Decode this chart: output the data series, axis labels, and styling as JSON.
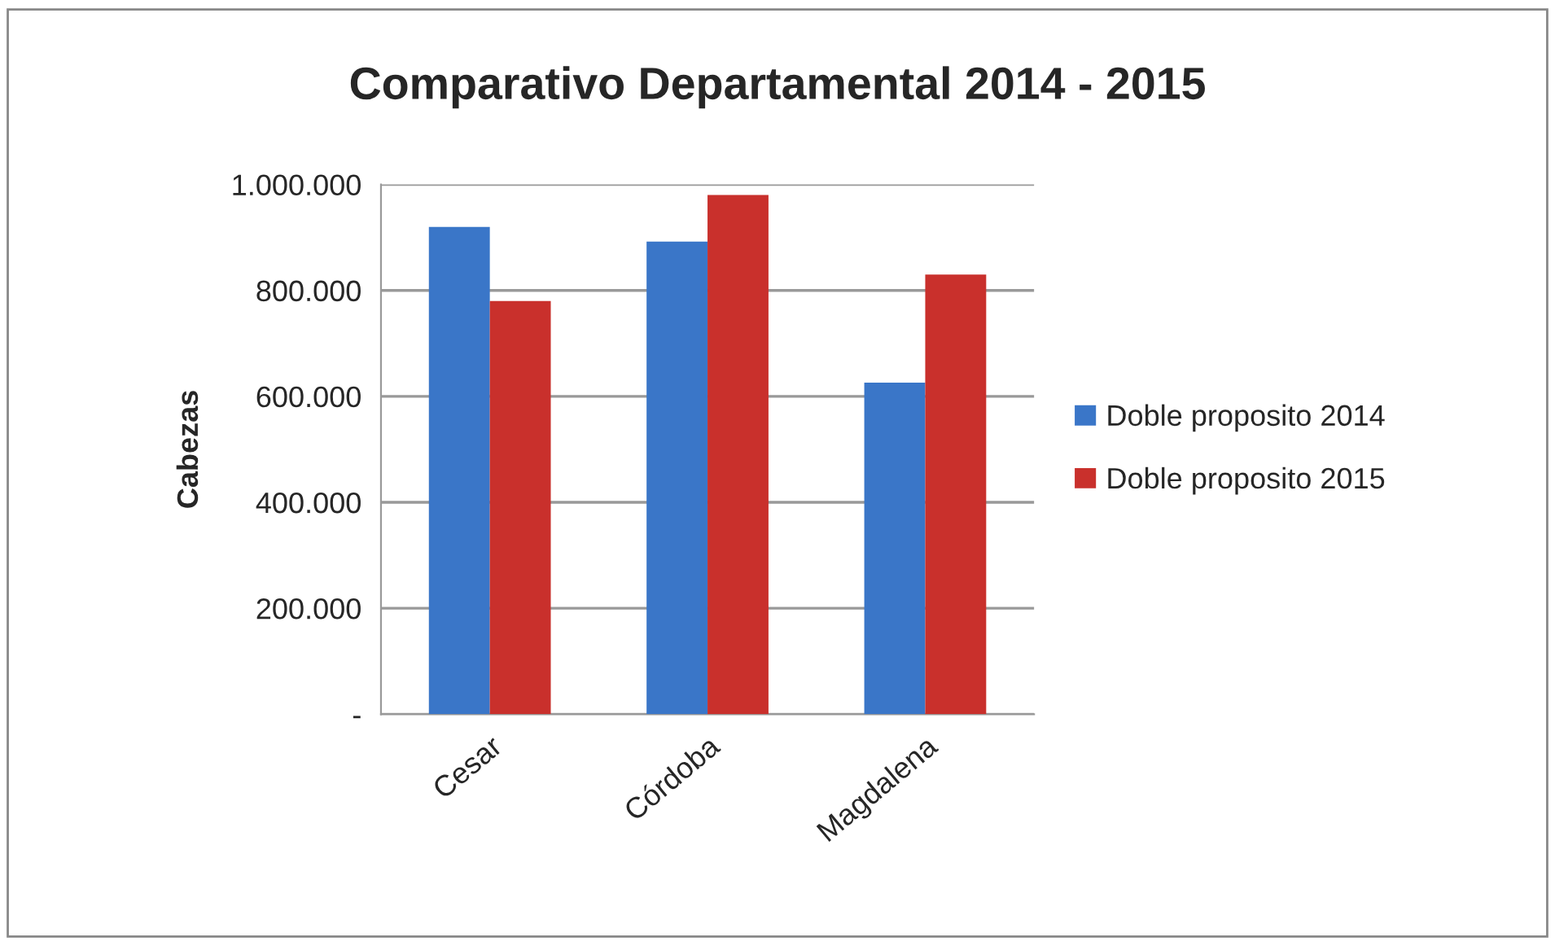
{
  "chart_data": {
    "type": "bar",
    "title": "Comparativo Departamental 2014 - 2015",
    "ylabel": "Cabezas",
    "categories": [
      "Cesar",
      "Córdoba",
      "Magdalena"
    ],
    "series": [
      {
        "name": "Doble proposito 2014",
        "color": "#3a76c8",
        "values": [
          920000,
          892000,
          626000
        ]
      },
      {
        "name": "Doble proposito 2015",
        "color": "#c9302c",
        "values": [
          780000,
          980000,
          830000
        ]
      }
    ],
    "ylim": [
      0,
      1000000
    ],
    "yticks": [
      {
        "value": 0,
        "label": "-"
      },
      {
        "value": 200000,
        "label": "200.000"
      },
      {
        "value": 400000,
        "label": "400.000"
      },
      {
        "value": 600000,
        "label": "600.000"
      },
      {
        "value": 800000,
        "label": "800.000"
      },
      {
        "value": 1000000,
        "label": "1.000.000"
      }
    ],
    "grid": "y",
    "legend": "right"
  }
}
